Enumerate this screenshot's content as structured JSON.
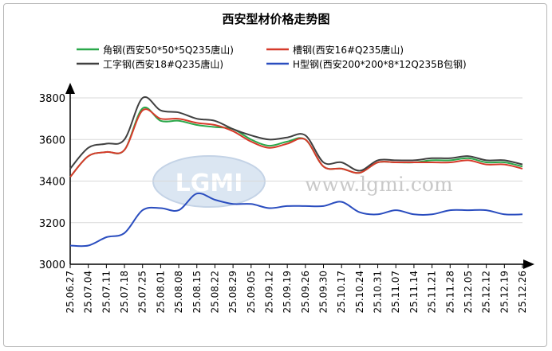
{
  "chart_data": {
    "type": "line",
    "title": "西安型材价格走势图",
    "xlabel": "",
    "ylabel": "",
    "ylim": [
      3000,
      3850
    ],
    "yticks": [
      3000,
      3200,
      3400,
      3600,
      3800
    ],
    "grid": true,
    "legend_position": "top",
    "categories": [
      "25.06.27",
      "25.07.04",
      "25.07.11",
      "25.07.18",
      "25.07.25",
      "25.08.01",
      "25.08.08",
      "25.08.15",
      "25.08.22",
      "25.08.29",
      "25.09.05",
      "25.09.12",
      "25.09.19",
      "25.09.26",
      "25.09.30",
      "25.10.17",
      "25.10.24",
      "25.10.31",
      "25.11.07",
      "25.11.14",
      "25.11.21",
      "25.11.28",
      "25.12.05",
      "25.12.12",
      "25.12.19",
      "25.12.26"
    ],
    "series": [
      {
        "name": "角钢(西安50*50*5Q235唐山)",
        "color": "#2aa84a",
        "values": [
          3420,
          3520,
          3540,
          3550,
          3750,
          3690,
          3690,
          3670,
          3660,
          3650,
          3600,
          3570,
          3590,
          3600,
          3470,
          3460,
          3440,
          3490,
          3490,
          3490,
          3500,
          3500,
          3510,
          3490,
          3490,
          3470
        ]
      },
      {
        "name": "槽钢(西安16#Q235唐山)",
        "color": "#d63a2a",
        "values": [
          3420,
          3520,
          3540,
          3550,
          3740,
          3700,
          3700,
          3680,
          3670,
          3640,
          3590,
          3560,
          3580,
          3600,
          3470,
          3460,
          3440,
          3490,
          3490,
          3490,
          3490,
          3490,
          3500,
          3480,
          3480,
          3460
        ]
      },
      {
        "name": "工字钢(西安18#Q235唐山)",
        "color": "#404040",
        "values": [
          3460,
          3560,
          3580,
          3600,
          3800,
          3740,
          3730,
          3700,
          3690,
          3650,
          3620,
          3600,
          3610,
          3620,
          3490,
          3490,
          3450,
          3500,
          3500,
          3500,
          3510,
          3510,
          3520,
          3500,
          3500,
          3480
        ]
      },
      {
        "name": "H型钢(西安200*200*8*12Q235B包钢)",
        "color": "#2a4dbf",
        "values": [
          3090,
          3090,
          3130,
          3150,
          3260,
          3270,
          3260,
          3340,
          3310,
          3290,
          3290,
          3270,
          3280,
          3280,
          3280,
          3300,
          3250,
          3240,
          3260,
          3240,
          3240,
          3260,
          3260,
          3260,
          3240,
          3240
        ]
      }
    ]
  },
  "watermark": {
    "logo_text": "LGMI",
    "site_text": "www.lgmi.com"
  }
}
